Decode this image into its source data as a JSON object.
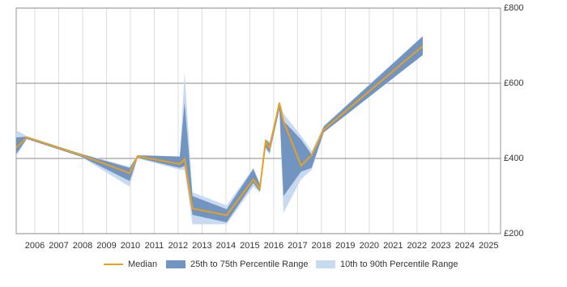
{
  "chart_data": {
    "type": "line",
    "x": [
      2005.22,
      2005.66,
      2007.93,
      2009.97,
      2010.3,
      2012.07,
      2012.27,
      2012.6,
      2014.03,
      2015.15,
      2015.42,
      2015.66,
      2015.83,
      2016.24,
      2016.41,
      2017.15,
      2017.59,
      2018.1,
      2022.24
    ],
    "series": [
      {
        "name": "Median",
        "color": "#e8a020",
        "values": [
          428,
          456,
          409,
          361,
          406,
          385,
          398,
          267,
          249,
          344,
          320,
          445,
          428,
          548,
          499,
          381,
          409,
          477,
          699
        ]
      },
      {
        "name": "25th to 75th Percentile Range",
        "color": "#7294c0",
        "low": [
          412,
          452,
          405,
          340,
          402,
          375,
          380,
          250,
          230,
          335,
          312,
          430,
          415,
          530,
          300,
          365,
          375,
          470,
          675
        ],
        "high": [
          456,
          458,
          412,
          375,
          408,
          405,
          550,
          300,
          265,
          372,
          330,
          450,
          440,
          550,
          500,
          450,
          410,
          485,
          725
        ]
      },
      {
        "name": "10th to 90th Percentile Range",
        "color": "#c8daef",
        "low": [
          405,
          452,
          404,
          325,
          400,
          370,
          370,
          225,
          225,
          325,
          310,
          425,
          410,
          530,
          255,
          345,
          370,
          468,
          675
        ],
        "high": [
          475,
          460,
          413,
          378,
          410,
          405,
          630,
          310,
          275,
          375,
          335,
          452,
          445,
          552,
          520,
          460,
          420,
          488,
          725
        ]
      }
    ],
    "xlim": [
      2005.22,
      2025.5
    ],
    "xticks": [
      2006,
      2007,
      2008,
      2009,
      2010,
      2011,
      2012,
      2013,
      2014,
      2015,
      2016,
      2017,
      2018,
      2019,
      2020,
      2021,
      2022,
      2023,
      2024,
      2025
    ],
    "ylim": [
      200,
      800
    ],
    "yticks": [
      {
        "value": 200,
        "label": "£200"
      },
      {
        "value": 400,
        "label": "£400"
      },
      {
        "value": 600,
        "label": "£600"
      },
      {
        "value": 800,
        "label": "£800"
      }
    ],
    "grid": true,
    "legend": "bottom"
  }
}
